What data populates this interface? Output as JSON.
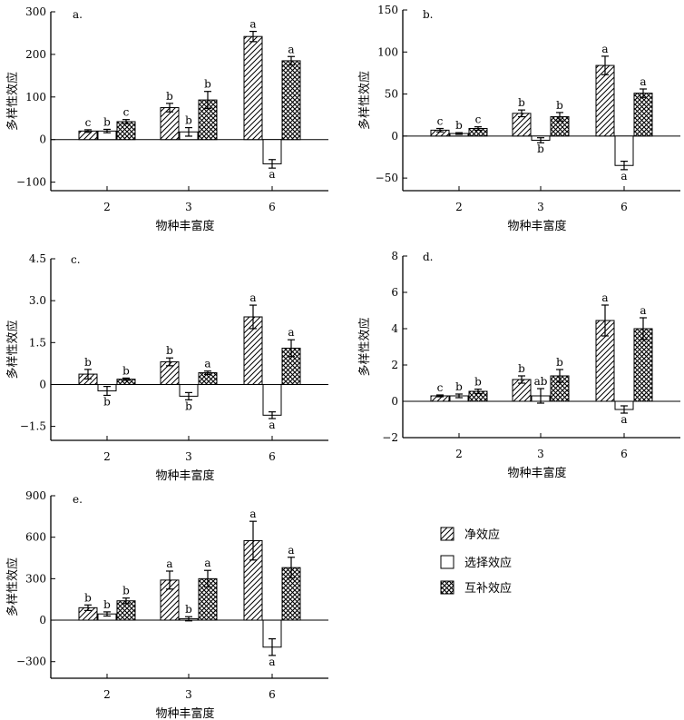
{
  "legend": {
    "items": [
      {
        "key": "net",
        "label": "净效应",
        "pattern": "hatch"
      },
      {
        "key": "sel",
        "label": "选择效应",
        "pattern": "open"
      },
      {
        "key": "comp",
        "label": "互补效应",
        "pattern": "cross"
      }
    ]
  },
  "chart_data": [
    {
      "type": "bar",
      "panel": "a.",
      "xlabel": "物种丰富度",
      "ylabel": "多样性效应",
      "categories": [
        "2",
        "3",
        "6"
      ],
      "ylim": [
        -120,
        300
      ],
      "yticks": [
        {
          "v": -100,
          "label": "−100"
        },
        {
          "v": 0,
          "label": "0"
        },
        {
          "v": 100,
          "label": "100"
        },
        {
          "v": 200,
          "label": "200"
        },
        {
          "v": 300,
          "label": "300"
        }
      ],
      "series": [
        {
          "name": "净效应",
          "values": [
            20,
            75,
            242
          ],
          "errors": [
            3,
            10,
            12
          ],
          "letters": [
            "c",
            "b",
            "a"
          ]
        },
        {
          "name": "选择效应",
          "values": [
            20,
            18,
            -57
          ],
          "errors": [
            4,
            10,
            10
          ],
          "letters": [
            "b",
            "b",
            "a"
          ]
        },
        {
          "name": "互补效应",
          "values": [
            42,
            93,
            185
          ],
          "errors": [
            5,
            20,
            10
          ],
          "letters": [
            "c",
            "b",
            "a"
          ]
        }
      ]
    },
    {
      "type": "bar",
      "panel": "b.",
      "xlabel": "物种丰富度",
      "ylabel": "多样性效应",
      "categories": [
        "2",
        "3",
        "6"
      ],
      "ylim": [
        -65,
        150
      ],
      "yticks": [
        {
          "v": -50,
          "label": "−50"
        },
        {
          "v": 0,
          "label": "0"
        },
        {
          "v": 50,
          "label": "50"
        },
        {
          "v": 100,
          "label": "100"
        },
        {
          "v": 150,
          "label": "150"
        }
      ],
      "series": [
        {
          "name": "净效应",
          "values": [
            7,
            27,
            84
          ],
          "errors": [
            2,
            4,
            11
          ],
          "letters": [
            "c",
            "b",
            "a"
          ]
        },
        {
          "name": "选择效应",
          "values": [
            3,
            -5,
            -35
          ],
          "errors": [
            1,
            3,
            5
          ],
          "letters": [
            "b",
            "b",
            "a"
          ]
        },
        {
          "name": "互补效应",
          "values": [
            9,
            23,
            51
          ],
          "errors": [
            2,
            5,
            5
          ],
          "letters": [
            "c",
            "b",
            "a"
          ]
        }
      ]
    },
    {
      "type": "bar",
      "panel": "c.",
      "xlabel": "物种丰富度",
      "ylabel": "多样性效应",
      "categories": [
        "2",
        "3",
        "6"
      ],
      "ylim": [
        -2.0,
        4.5
      ],
      "yticks": [
        {
          "v": -1.5,
          "label": "−1.5"
        },
        {
          "v": 0,
          "label": "0"
        },
        {
          "v": 1.5,
          "label": "1.5"
        },
        {
          "v": 3.0,
          "label": "3.0"
        },
        {
          "v": 4.5,
          "label": "4.5"
        }
      ],
      "series": [
        {
          "name": "净效应",
          "values": [
            0.37,
            0.81,
            2.42
          ],
          "errors": [
            0.17,
            0.14,
            0.42
          ],
          "letters": [
            "b",
            "b",
            "a"
          ]
        },
        {
          "name": "选择效应",
          "values": [
            -0.23,
            -0.42,
            -1.1
          ],
          "errors": [
            0.16,
            0.13,
            0.12
          ],
          "letters": [
            "b",
            "b",
            "a"
          ]
        },
        {
          "name": "互补效应",
          "values": [
            0.19,
            0.42,
            1.3
          ],
          "errors": [
            0.04,
            0.06,
            0.3
          ],
          "letters": [
            "b",
            "a",
            "a"
          ]
        }
      ]
    },
    {
      "type": "bar",
      "panel": "d.",
      "xlabel": "物种丰富度",
      "ylabel": "多样性效应",
      "categories": [
        "2",
        "3",
        "6"
      ],
      "ylim": [
        -2,
        8
      ],
      "yticks": [
        {
          "v": -2,
          "label": "−2"
        },
        {
          "v": 0,
          "label": "0"
        },
        {
          "v": 2,
          "label": "2"
        },
        {
          "v": 4,
          "label": "4"
        },
        {
          "v": 6,
          "label": "6"
        },
        {
          "v": 8,
          "label": "8"
        }
      ],
      "series": [
        {
          "name": "净效应",
          "values": [
            0.3,
            1.2,
            4.45
          ],
          "errors": [
            0.05,
            0.2,
            0.85
          ],
          "letters": [
            "c",
            "b",
            "a"
          ]
        },
        {
          "name": "选择效应",
          "values": [
            0.3,
            0.3,
            -0.45
          ],
          "errors": [
            0.1,
            0.4,
            0.2
          ],
          "letters": [
            "b",
            "ab",
            "a"
          ]
        },
        {
          "name": "互补效应",
          "values": [
            0.55,
            1.4,
            4.0
          ],
          "errors": [
            0.12,
            0.35,
            0.6
          ],
          "letters": [
            "b",
            "b",
            "a"
          ]
        }
      ]
    },
    {
      "type": "bar",
      "panel": "e.",
      "xlabel": "物种丰富度",
      "ylabel": "多样性效应",
      "categories": [
        "2",
        "3",
        "6"
      ],
      "ylim": [
        -420,
        900
      ],
      "yticks": [
        {
          "v": -300,
          "label": "−300"
        },
        {
          "v": 0,
          "label": "0"
        },
        {
          "v": 300,
          "label": "300"
        },
        {
          "v": 600,
          "label": "600"
        },
        {
          "v": 900,
          "label": "900"
        }
      ],
      "series": [
        {
          "name": "净效应",
          "values": [
            90,
            290,
            575
          ],
          "errors": [
            20,
            65,
            140
          ],
          "letters": [
            "b",
            "a",
            "a"
          ]
        },
        {
          "name": "选择效应",
          "values": [
            45,
            10,
            -195
          ],
          "errors": [
            15,
            15,
            60
          ],
          "letters": [
            "b",
            "b",
            "a"
          ]
        },
        {
          "name": "互补效应",
          "values": [
            140,
            300,
            380
          ],
          "errors": [
            20,
            60,
            75
          ],
          "letters": [
            "b",
            "a",
            "a"
          ]
        }
      ]
    }
  ]
}
